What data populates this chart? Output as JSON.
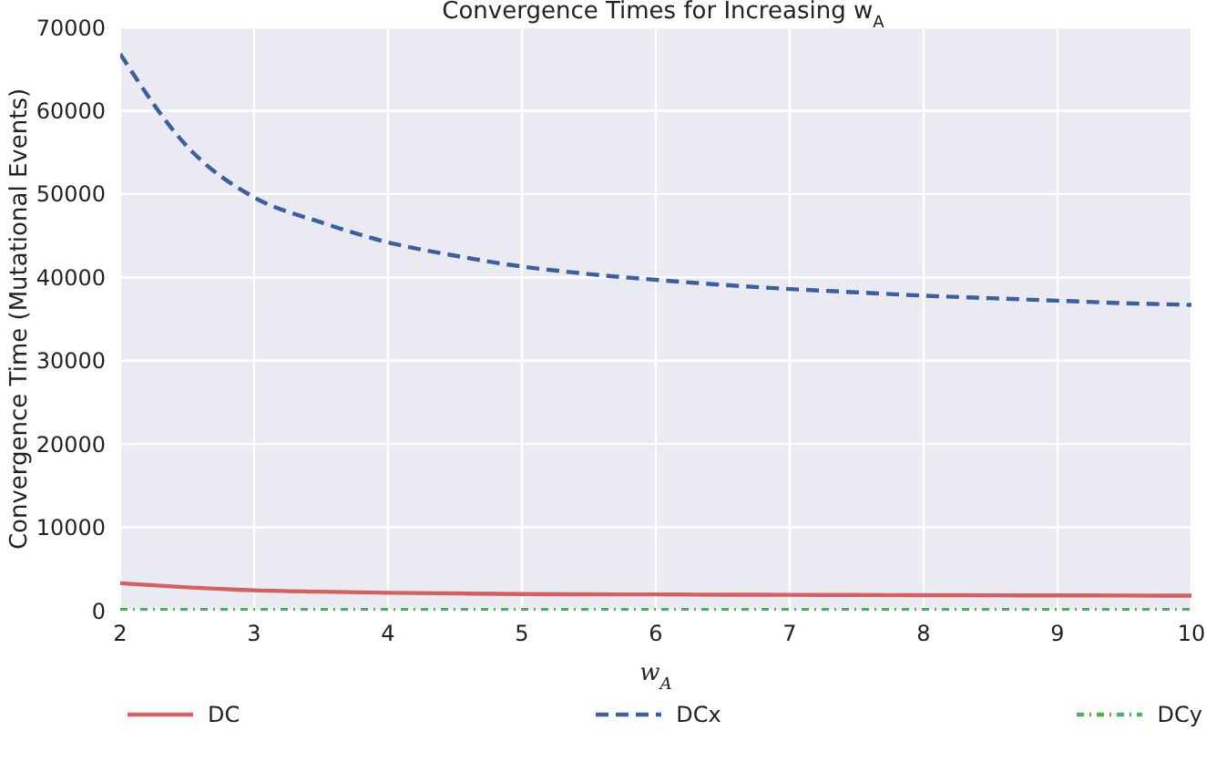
{
  "chart_data": {
    "type": "line",
    "title": "Convergence Times for Increasing w$_{A}$",
    "xlabel": "w$_{A}$",
    "ylabel": "Convergence Time (Mutational Events)",
    "x": [
      2,
      2.5,
      3,
      3.5,
      4,
      4.5,
      5,
      5.5,
      6,
      6.5,
      7,
      7.5,
      8,
      8.5,
      9,
      9.5,
      10
    ],
    "series": [
      {
        "name": "DC",
        "color": "#d65f5f",
        "line_style": "solid",
        "values": [
          3300,
          2800,
          2450,
          2280,
          2150,
          2070,
          2000,
          1970,
          1950,
          1920,
          1900,
          1880,
          1860,
          1850,
          1830,
          1820,
          1800
        ]
      },
      {
        "name": "DCx",
        "color": "#3d5f9e",
        "line_style": "dashed",
        "values": [
          66800,
          55700,
          49600,
          46600,
          44200,
          42600,
          41300,
          40400,
          39700,
          39100,
          38600,
          38200,
          37800,
          37500,
          37200,
          36900,
          36700
        ]
      },
      {
        "name": "DCy",
        "color": "#4bb05a",
        "line_style": "dotted",
        "values": [
          100,
          100,
          100,
          100,
          100,
          100,
          100,
          100,
          100,
          100,
          100,
          100,
          100,
          100,
          100,
          100,
          100
        ]
      }
    ],
    "xlim": [
      2,
      10
    ],
    "xticks": [
      2,
      3,
      4,
      5,
      6,
      7,
      8,
      9,
      10
    ],
    "ylim": [
      0,
      70000
    ],
    "yticks": [
      0,
      10000,
      20000,
      30000,
      40000,
      50000,
      60000,
      70000
    ],
    "grid": true,
    "legend": "bottom",
    "marker": "none"
  }
}
